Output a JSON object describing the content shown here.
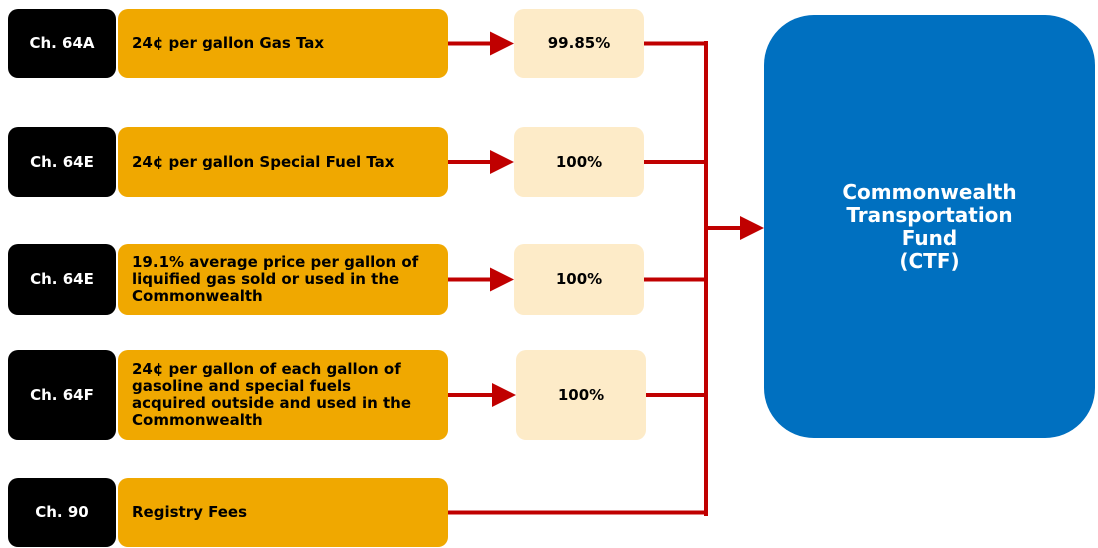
{
  "rows": [
    {
      "chapter": "Ch. 64A",
      "description": [
        "24¢ per gallon Gas Tax"
      ],
      "share": "99.85%"
    },
    {
      "chapter": "Ch. 64E",
      "description": [
        "24¢ per gallon Special Fuel Tax"
      ],
      "share": "100%"
    },
    {
      "chapter": "Ch. 64E",
      "description": [
        "19.1% average price per gallon of",
        "liquified gas sold or used in the",
        "Commonwealth"
      ],
      "share": "100%"
    },
    {
      "chapter": "Ch. 64F",
      "description": [
        "24¢ per gallon of each gallon of",
        "gasoline and special fuels",
        "acquired outside and used in the",
        "Commonwealth"
      ],
      "share": "100%"
    },
    {
      "chapter": "Ch. 90",
      "description": [
        "Registry Fees"
      ]
    }
  ],
  "target": {
    "label": [
      "Commonwealth",
      "Transportation",
      "Fund",
      "(CTF)"
    ]
  }
}
